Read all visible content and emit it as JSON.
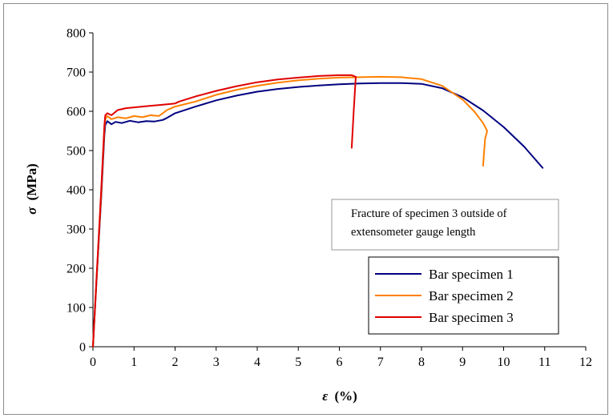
{
  "chart_data": {
    "type": "line",
    "xlabel_symbol": "ε",
    "xlabel_unit": "(%)",
    "ylabel_symbol": "σ",
    "ylabel_unit": "(MPa)",
    "xlim": [
      0,
      12
    ],
    "ylim": [
      0,
      800
    ],
    "x_ticks": [
      "0",
      "1",
      "2",
      "3",
      "4",
      "5",
      "6",
      "7",
      "8",
      "9",
      "10",
      "11",
      "12"
    ],
    "y_ticks": [
      "0",
      "100",
      "200",
      "300",
      "400",
      "500",
      "600",
      "700",
      "800"
    ],
    "grid": false,
    "legend_position": "bottom-right",
    "annotation": {
      "lines": [
        "Fracture of specimen 3 outside of",
        "extensometer gauge length"
      ]
    },
    "series": [
      {
        "name": "Bar specimen 1",
        "color": "#000080",
        "x": [
          0,
          0.1,
          0.2,
          0.28,
          0.3,
          0.35,
          0.45,
          0.55,
          0.7,
          0.9,
          1.1,
          1.3,
          1.5,
          1.7,
          1.8,
          2.0,
          2.5,
          3.0,
          3.5,
          4.0,
          4.5,
          5.0,
          5.5,
          6.0,
          6.5,
          7.0,
          7.5,
          8.0,
          8.5,
          9.0,
          9.5,
          10.0,
          10.5,
          10.95
        ],
        "y": [
          0,
          190,
          380,
          540,
          565,
          575,
          567,
          573,
          570,
          576,
          572,
          575,
          574,
          578,
          583,
          595,
          612,
          628,
          640,
          650,
          657,
          662,
          666,
          669,
          671,
          672,
          672,
          670,
          659,
          636,
          602,
          560,
          510,
          456
        ]
      },
      {
        "name": "Bar specimen 2",
        "color": "#FF8000",
        "x": [
          0,
          0.1,
          0.2,
          0.28,
          0.3,
          0.35,
          0.45,
          0.6,
          0.8,
          1.0,
          1.2,
          1.4,
          1.6,
          1.7,
          1.8,
          2.0,
          2.5,
          3.0,
          3.5,
          4.0,
          4.5,
          5.0,
          5.5,
          6.0,
          6.5,
          7.0,
          7.5,
          8.0,
          8.5,
          9.0,
          9.3,
          9.5,
          9.6,
          9.55,
          9.52,
          9.5
        ],
        "y": [
          0,
          195,
          390,
          555,
          580,
          588,
          580,
          585,
          582,
          588,
          585,
          590,
          588,
          595,
          603,
          612,
          625,
          642,
          655,
          665,
          673,
          679,
          683,
          686,
          687,
          688,
          687,
          682,
          665,
          630,
          598,
          570,
          550,
          530,
          490,
          461
        ]
      },
      {
        "name": "Bar specimen 3",
        "color": "#E00000",
        "x": [
          0,
          0.1,
          0.2,
          0.28,
          0.3,
          0.35,
          0.45,
          0.6,
          0.8,
          1.0,
          1.2,
          1.4,
          1.6,
          1.8,
          2.0,
          2.1,
          2.5,
          3.0,
          3.5,
          4.0,
          4.5,
          5.0,
          5.5,
          6.0,
          6.3,
          6.4,
          6.35,
          6.3
        ],
        "y": [
          0,
          200,
          400,
          565,
          590,
          595,
          590,
          603,
          608,
          610,
          612,
          614,
          616,
          618,
          620,
          625,
          638,
          652,
          664,
          674,
          681,
          686,
          690,
          692,
          692,
          688,
          600,
          507
        ]
      }
    ]
  }
}
